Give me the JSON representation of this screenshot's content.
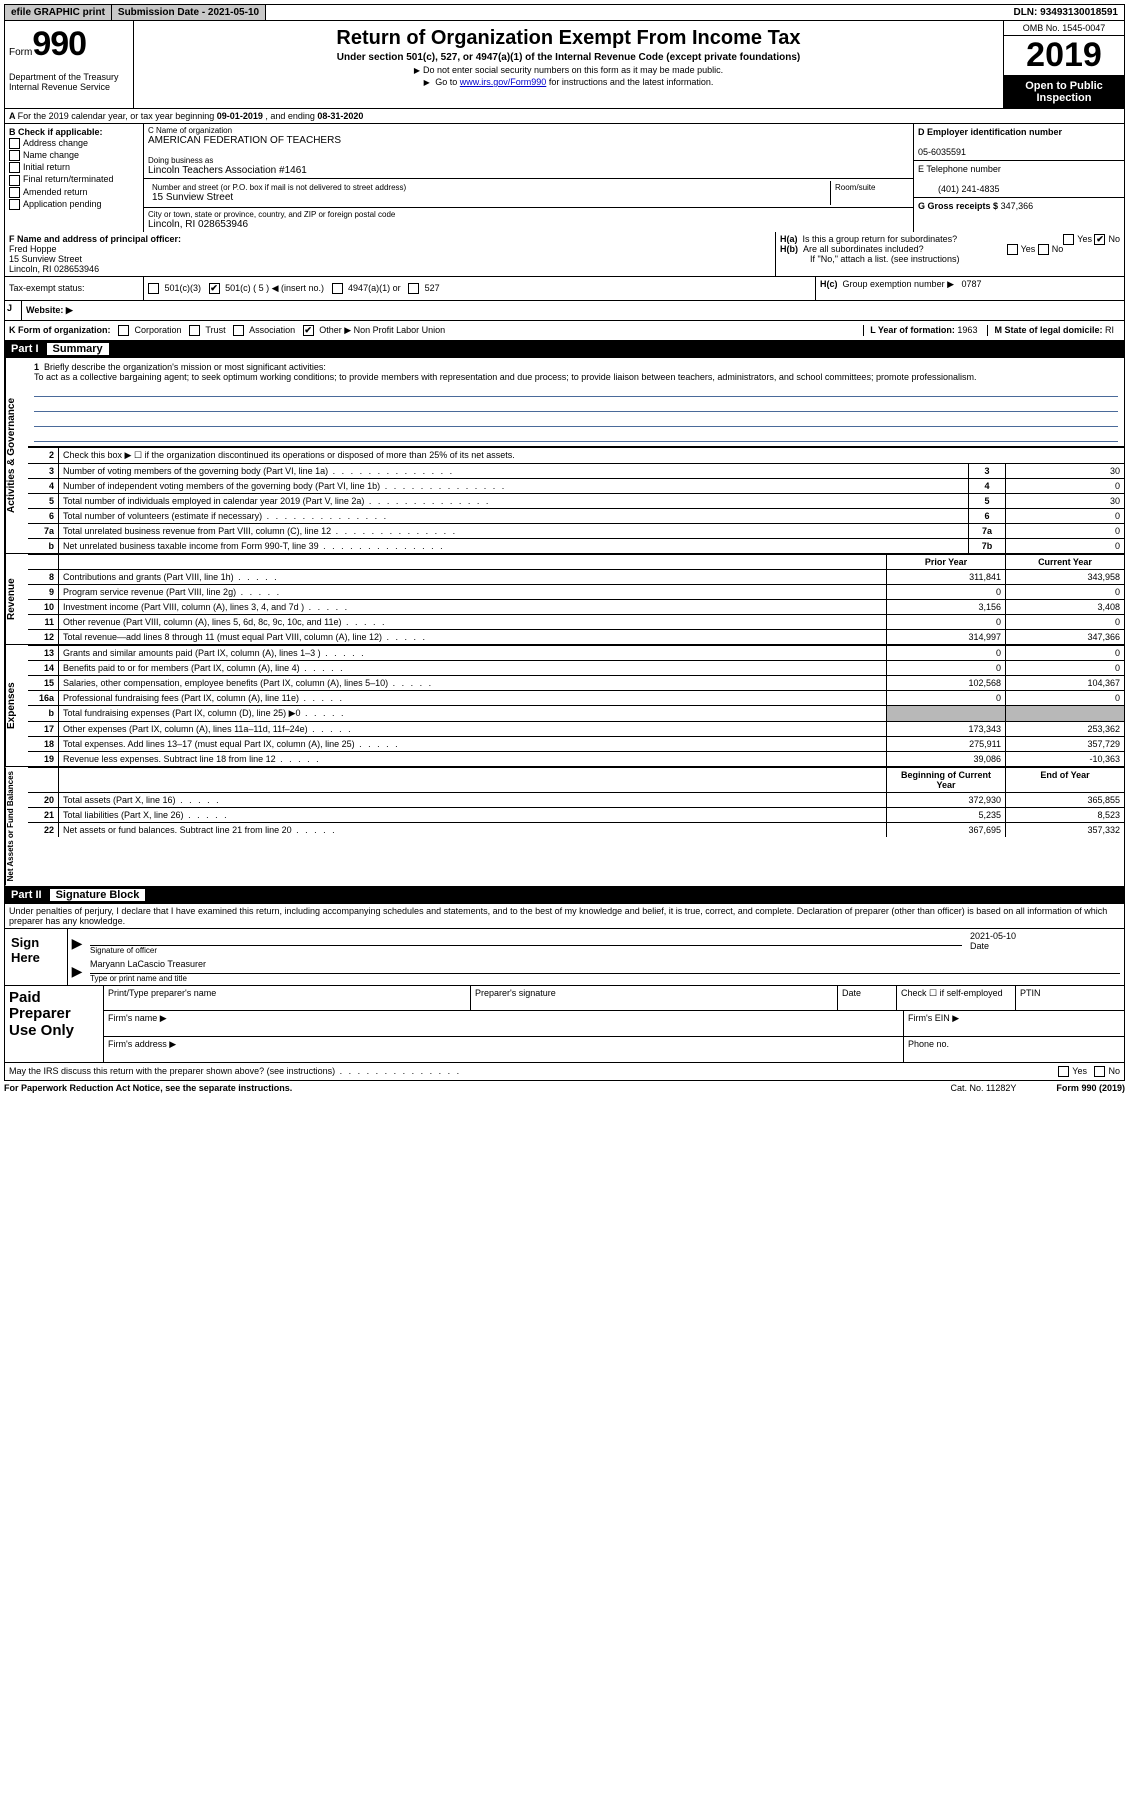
{
  "topbar": {
    "efile": "efile GRAPHIC print",
    "subdate_lbl": "Submission Date - 2021-05-10",
    "dln": "DLN: 93493130018591"
  },
  "header": {
    "form_word": "Form",
    "form_num": "990",
    "dept": "Department of the Treasury\nInternal Revenue Service",
    "title": "Return of Organization Exempt From Income Tax",
    "sub": "Under section 501(c), 527, or 4947(a)(1) of the Internal Revenue Code (except private foundations)",
    "note1": "Do not enter social security numbers on this form as it may be made public.",
    "note2_pre": "Go to ",
    "note2_link": "www.irs.gov/Form990",
    "note2_post": " for instructions and the latest information.",
    "omb": "OMB No. 1545-0047",
    "year": "2019",
    "inspect": "Open to Public Inspection"
  },
  "rowA": {
    "text_pre": "For the 2019 calendar year, or tax year beginning ",
    "begin": "09-01-2019",
    "mid": " , and ending ",
    "end": "08-31-2020"
  },
  "B": {
    "title": "B Check if applicable:",
    "opts": [
      "Address change",
      "Name change",
      "Initial return",
      "Final return/terminated",
      "Amended return",
      "Application pending"
    ]
  },
  "C": {
    "name_lbl": "C Name of organization",
    "name": "AMERICAN FEDERATION OF TEACHERS",
    "dba_lbl": "Doing business as",
    "dba": "Lincoln Teachers Association #1461",
    "addr_lbl": "Number and street (or P.O. box if mail is not delivered to street address)",
    "room_lbl": "Room/suite",
    "addr": "15 Sunview Street",
    "city_lbl": "City or town, state or province, country, and ZIP or foreign postal code",
    "city": "Lincoln, RI  028653946"
  },
  "D": {
    "lbl": "D Employer identification number",
    "val": "05-6035591"
  },
  "E": {
    "lbl": "E Telephone number",
    "val": "(401) 241-4835"
  },
  "G": {
    "lbl": "G Gross receipts $",
    "val": "347,366"
  },
  "F": {
    "lbl": "F  Name and address of principal officer:",
    "name": "Fred Hoppe",
    "addr1": "15 Sunview Street",
    "addr2": "Lincoln, RI  028653946"
  },
  "H": {
    "a": "Is this a group return for subordinates?",
    "b": "Are all subordinates included?",
    "note": "If \"No,\" attach a list. (see instructions)",
    "c_lbl": "Group exemption number ▶",
    "c_val": "0787",
    "ha_lbl": "H(a)",
    "hb_lbl": "H(b)",
    "hc_lbl": "H(c)",
    "yes": "Yes",
    "no": "No"
  },
  "I": {
    "lbl": "Tax-exempt status:",
    "opts": [
      "501(c)(3)",
      "501(c) ( 5 ) ◀ (insert no.)",
      "4947(a)(1) or",
      "527"
    ]
  },
  "J": {
    "lbl": "Website: ▶"
  },
  "K": {
    "lbl": "K Form of organization:",
    "opts": [
      "Corporation",
      "Trust",
      "Association",
      "Other ▶"
    ],
    "other": "Non Profit Labor Union"
  },
  "L": {
    "lbl": "L Year of formation:",
    "val": "1963"
  },
  "M": {
    "lbl": "M State of legal domicile:",
    "val": "RI"
  },
  "part1": {
    "num": "Part I",
    "title": "Summary",
    "tab1": "Activities & Governance",
    "tab2": "Revenue",
    "tab3": "Expenses",
    "tab4": "Net Assets or Fund Balances",
    "q1_lbl": "1",
    "q1": "Briefly describe the organization's mission or most significant activities:",
    "mission": "To act as a collective bargaining agent; to seek optimum working conditions; to provide members with representation and due process; to provide liaison between teachers, administrators, and school committees; promote professionalism.",
    "q2": "Check this box ▶ ☐  if the organization discontinued its operations or disposed of more than 25% of its net assets.",
    "rows_gov": [
      {
        "n": "3",
        "d": "Number of voting members of the governing body (Part VI, line 1a)",
        "box": "3",
        "v": "30"
      },
      {
        "n": "4",
        "d": "Number of independent voting members of the governing body (Part VI, line 1b)",
        "box": "4",
        "v": "0"
      },
      {
        "n": "5",
        "d": "Total number of individuals employed in calendar year 2019 (Part V, line 2a)",
        "box": "5",
        "v": "30"
      },
      {
        "n": "6",
        "d": "Total number of volunteers (estimate if necessary)",
        "box": "6",
        "v": "0"
      },
      {
        "n": "7a",
        "d": "Total unrelated business revenue from Part VIII, column (C), line 12",
        "box": "7a",
        "v": "0"
      },
      {
        "n": "b",
        "d": "Net unrelated business taxable income from Form 990-T, line 39",
        "box": "7b",
        "v": "0"
      }
    ],
    "hdr_prior": "Prior Year",
    "hdr_curr": "Current Year",
    "rows_rev": [
      {
        "n": "8",
        "d": "Contributions and grants (Part VIII, line 1h)",
        "p": "311,841",
        "c": "343,958"
      },
      {
        "n": "9",
        "d": "Program service revenue (Part VIII, line 2g)",
        "p": "0",
        "c": "0"
      },
      {
        "n": "10",
        "d": "Investment income (Part VIII, column (A), lines 3, 4, and 7d )",
        "p": "3,156",
        "c": "3,408"
      },
      {
        "n": "11",
        "d": "Other revenue (Part VIII, column (A), lines 5, 6d, 8c, 9c, 10c, and 11e)",
        "p": "0",
        "c": "0"
      },
      {
        "n": "12",
        "d": "Total revenue—add lines 8 through 11 (must equal Part VIII, column (A), line 12)",
        "p": "314,997",
        "c": "347,366"
      }
    ],
    "rows_exp": [
      {
        "n": "13",
        "d": "Grants and similar amounts paid (Part IX, column (A), lines 1–3 )",
        "p": "0",
        "c": "0"
      },
      {
        "n": "14",
        "d": "Benefits paid to or for members (Part IX, column (A), line 4)",
        "p": "0",
        "c": "0"
      },
      {
        "n": "15",
        "d": "Salaries, other compensation, employee benefits (Part IX, column (A), lines 5–10)",
        "p": "102,568",
        "c": "104,367"
      },
      {
        "n": "16a",
        "d": "Professional fundraising fees (Part IX, column (A), line 11e)",
        "p": "0",
        "c": "0"
      },
      {
        "n": "b",
        "d": "Total fundraising expenses (Part IX, column (D), line 25) ▶0",
        "p": "",
        "c": "",
        "grey": true
      },
      {
        "n": "17",
        "d": "Other expenses (Part IX, column (A), lines 11a–11d, 11f–24e)",
        "p": "173,343",
        "c": "253,362"
      },
      {
        "n": "18",
        "d": "Total expenses. Add lines 13–17 (must equal Part IX, column (A), line 25)",
        "p": "275,911",
        "c": "357,729"
      },
      {
        "n": "19",
        "d": "Revenue less expenses. Subtract line 18 from line 12",
        "p": "39,086",
        "c": "-10,363"
      }
    ],
    "hdr_begin": "Beginning of Current Year",
    "hdr_end": "End of Year",
    "rows_net": [
      {
        "n": "20",
        "d": "Total assets (Part X, line 16)",
        "p": "372,930",
        "c": "365,855"
      },
      {
        "n": "21",
        "d": "Total liabilities (Part X, line 26)",
        "p": "5,235",
        "c": "8,523"
      },
      {
        "n": "22",
        "d": "Net assets or fund balances. Subtract line 21 from line 20",
        "p": "367,695",
        "c": "357,332"
      }
    ]
  },
  "part2": {
    "num": "Part II",
    "title": "Signature Block",
    "penalty": "Under penalties of perjury, I declare that I have examined this return, including accompanying schedules and statements, and to the best of my knowledge and belief, it is true, correct, and complete. Declaration of preparer (other than officer) is based on all information of which preparer has any knowledge.",
    "sign_here": "Sign Here",
    "sig_officer": "Signature of officer",
    "date_lbl": "Date",
    "date_val": "2021-05-10",
    "officer_name": "Maryann LaCascio  Treasurer",
    "type_name": "Type or print name and title",
    "paid": "Paid Preparer Use Only",
    "prep_name": "Print/Type preparer's name",
    "prep_sig": "Preparer's signature",
    "prep_date": "Date",
    "check_self": "Check ☐  if self-employed",
    "ptin": "PTIN",
    "firm_name": "Firm's name  ▶",
    "firm_ein": "Firm's EIN ▶",
    "firm_addr": "Firm's address ▶",
    "phone": "Phone no.",
    "discuss": "May the IRS discuss this return with the preparer shown above? (see instructions)"
  },
  "footer": {
    "pra": "For Paperwork Reduction Act Notice, see the separate instructions.",
    "cat": "Cat. No. 11282Y",
    "form": "Form 990 (2019)"
  }
}
